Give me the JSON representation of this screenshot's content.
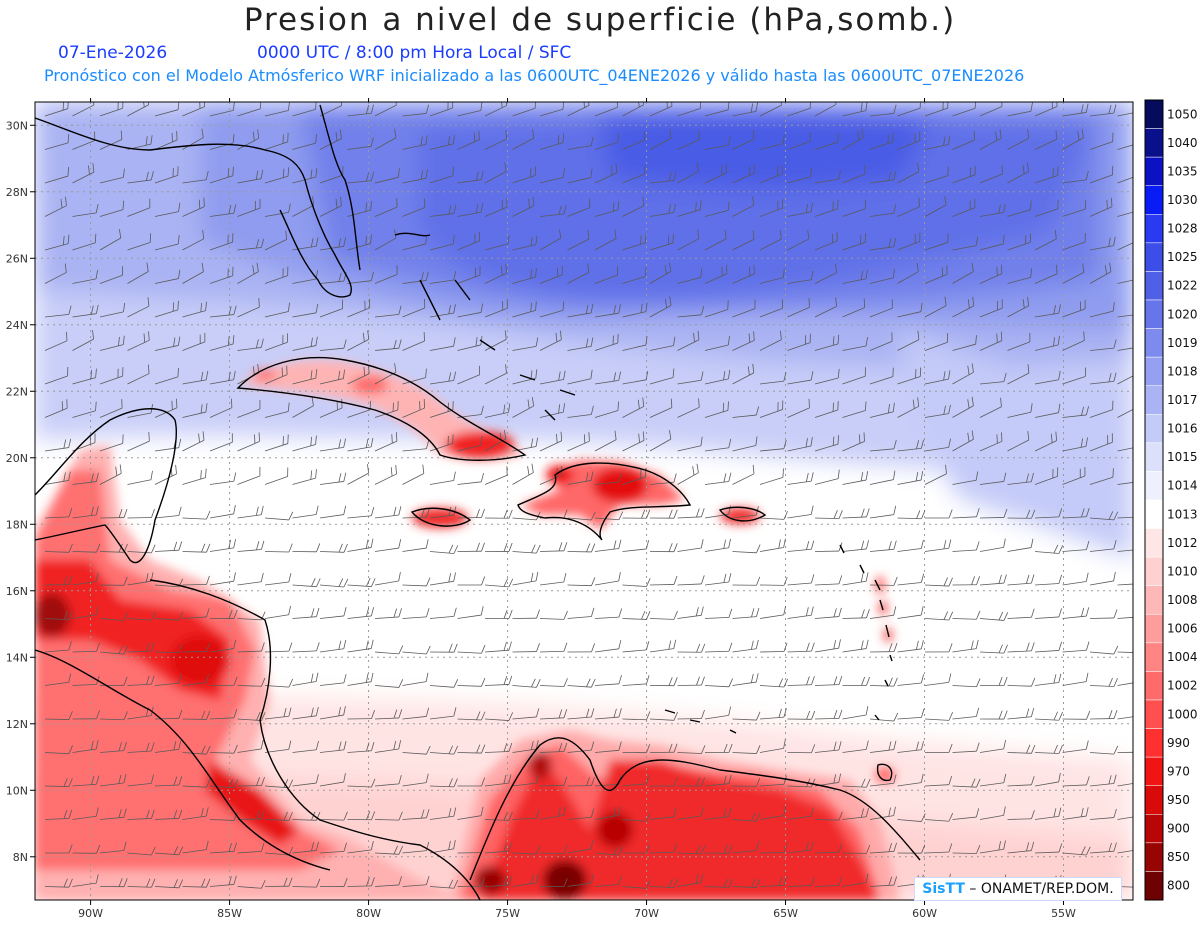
{
  "title": "Presion a nivel de superficie (hPa,somb.)",
  "date": "07-Ene-2026",
  "time_info": "0000 UTC / 8:00 pm Hora Local / SFC",
  "forecast_info": "Pronóstico con el Modelo Atmósferico WRF inicializado a las 0600UTC_04ENE2026 y válido hasta las  0600UTC_07ENE2026",
  "credit": {
    "brand": "SisTT",
    "text": "– ONAMET/REP.DOM."
  },
  "map": {
    "lon_range": [
      -92,
      -52.5
    ],
    "lat_range": [
      6.7,
      30.7
    ],
    "lon_ticks": [
      {
        "value": -90,
        "label": "90W"
      },
      {
        "value": -85,
        "label": "85W"
      },
      {
        "value": -80,
        "label": "80W"
      },
      {
        "value": -75,
        "label": "75W"
      },
      {
        "value": -70,
        "label": "70W"
      },
      {
        "value": -65,
        "label": "65W"
      },
      {
        "value": -60,
        "label": "60W"
      },
      {
        "value": -55,
        "label": "55W"
      }
    ],
    "lat_ticks": [
      {
        "value": 8,
        "label": "8N"
      },
      {
        "value": 10,
        "label": "10N"
      },
      {
        "value": 12,
        "label": "12N"
      },
      {
        "value": 14,
        "label": "14N"
      },
      {
        "value": 16,
        "label": "16N"
      },
      {
        "value": 18,
        "label": "18N"
      },
      {
        "value": 20,
        "label": "20N"
      },
      {
        "value": 22,
        "label": "22N"
      },
      {
        "value": 24,
        "label": "24N"
      },
      {
        "value": 26,
        "label": "26N"
      },
      {
        "value": 28,
        "label": "28N"
      },
      {
        "value": 30,
        "label": "30N"
      }
    ]
  },
  "colorbar": {
    "levels": [
      {
        "label": "1050",
        "color": "#070b5c"
      },
      {
        "label": "1040",
        "color": "#0a0f8c"
      },
      {
        "label": "1035",
        "color": "#0b12c4"
      },
      {
        "label": "1030",
        "color": "#0a1cf5"
      },
      {
        "label": "1028",
        "color": "#2a3af0"
      },
      {
        "label": "1025",
        "color": "#3d4ee8"
      },
      {
        "label": "1022",
        "color": "#4f60e6"
      },
      {
        "label": "1020",
        "color": "#6676ea"
      },
      {
        "label": "1019",
        "color": "#7d8bef"
      },
      {
        "label": "1018",
        "color": "#95a0f2"
      },
      {
        "label": "1017",
        "color": "#aab4f5"
      },
      {
        "label": "1016",
        "color": "#c3cbf8"
      },
      {
        "label": "1015",
        "color": "#dce0fb"
      },
      {
        "label": "1014",
        "color": "#eef0fd"
      },
      {
        "label": "1013",
        "color": "#ffffff"
      },
      {
        "label": "1012",
        "color": "#ffe6e6"
      },
      {
        "label": "1010",
        "color": "#ffd0d0"
      },
      {
        "label": "1008",
        "color": "#ffb8b8"
      },
      {
        "label": "1006",
        "color": "#ff9d9d"
      },
      {
        "label": "1004",
        "color": "#ff8585"
      },
      {
        "label": "1002",
        "color": "#ff6b6b"
      },
      {
        "label": "1000",
        "color": "#ff4f4f"
      },
      {
        "label": "990",
        "color": "#ff3030"
      },
      {
        "label": "970",
        "color": "#f01414"
      },
      {
        "label": "950",
        "color": "#d80a0a"
      },
      {
        "label": "900",
        "color": "#b80606"
      },
      {
        "label": "850",
        "color": "#960404"
      },
      {
        "label": "800",
        "color": "#6e0202"
      }
    ]
  }
}
